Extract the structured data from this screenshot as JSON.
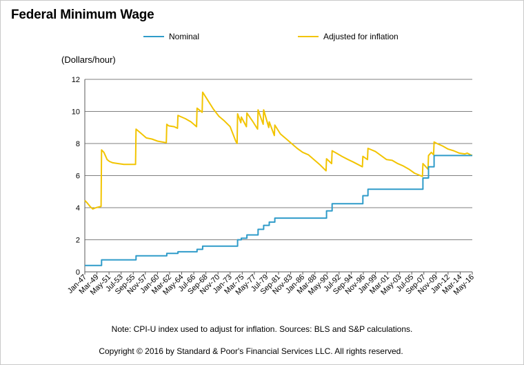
{
  "title": "Federal Minimum Wage",
  "note": "Note: CPI-U  index used to adjust for inflation. Sources: BLS and S&P  calculations.",
  "copyright": "Copyright © 2016 by Standard & Poor's Financial Services LLC. All rights reserved.",
  "colors": {
    "nominal": "#2e9bc9",
    "adjusted": "#f2c400",
    "grid": "#7f7f7f"
  },
  "chart_data": {
    "type": "line",
    "title": "Federal Minimum Wage",
    "ylabel": "(Dollars/hour)",
    "xlabel": "",
    "ylim": [
      0,
      12
    ],
    "yticks": [
      0,
      2,
      4,
      6,
      8,
      10,
      12
    ],
    "xlim": [
      "Jan-47",
      "May-16"
    ],
    "xtick_labels": [
      "Jan-47",
      "Mar-49",
      "May-51",
      "Jul-53",
      "Sep-55",
      "Nov-57",
      "Jan-60",
      "Mar-62",
      "May-64",
      "Jul-66",
      "Sep-68",
      "Nov-70",
      "Jan-73",
      "Mar-75",
      "May-77",
      "Jul-79",
      "Sep-81",
      "Nov-83",
      "Jan-86",
      "Mar-88",
      "May-90",
      "Jul-92",
      "Sep-94",
      "Nov-96",
      "Jan-99",
      "Mar-01",
      "May-03",
      "Jul-05",
      "Sep-07",
      "Nov-09",
      "Jan-12",
      "Mar-14",
      "May-16"
    ],
    "grid": true,
    "legend": "top",
    "series": [
      {
        "name": "Nominal",
        "color": "#2e9bc9",
        "points": [
          [
            "Jan-47",
            0.4
          ],
          [
            "Jan-50",
            0.4
          ],
          [
            "Jan-50",
            0.75
          ],
          [
            "Mar-56",
            0.75
          ],
          [
            "Mar-56",
            1.0
          ],
          [
            "Sep-61",
            1.0
          ],
          [
            "Sep-61",
            1.15
          ],
          [
            "Sep-63",
            1.15
          ],
          [
            "Sep-63",
            1.25
          ],
          [
            "Feb-67",
            1.25
          ],
          [
            "Feb-67",
            1.4
          ],
          [
            "Feb-68",
            1.4
          ],
          [
            "Feb-68",
            1.6
          ],
          [
            "May-74",
            1.6
          ],
          [
            "May-74",
            2.0
          ],
          [
            "Jan-75",
            2.0
          ],
          [
            "Jan-75",
            2.1
          ],
          [
            "Jan-76",
            2.1
          ],
          [
            "Jan-76",
            2.3
          ],
          [
            "Jan-78",
            2.3
          ],
          [
            "Jan-78",
            2.65
          ],
          [
            "Jan-79",
            2.65
          ],
          [
            "Jan-79",
            2.9
          ],
          [
            "Jan-80",
            2.9
          ],
          [
            "Jan-80",
            3.1
          ],
          [
            "Jan-81",
            3.1
          ],
          [
            "Jan-81",
            3.35
          ],
          [
            "Apr-90",
            3.35
          ],
          [
            "Apr-90",
            3.8
          ],
          [
            "Apr-91",
            3.8
          ],
          [
            "Apr-91",
            4.25
          ],
          [
            "Oct-96",
            4.25
          ],
          [
            "Oct-96",
            4.75
          ],
          [
            "Sep-97",
            4.75
          ],
          [
            "Sep-97",
            5.15
          ],
          [
            "Jul-07",
            5.15
          ],
          [
            "Jul-07",
            5.85
          ],
          [
            "Jul-08",
            5.85
          ],
          [
            "Jul-08",
            6.55
          ],
          [
            "Jul-09",
            6.55
          ],
          [
            "Jul-09",
            7.25
          ],
          [
            "May-16",
            7.25
          ]
        ]
      },
      {
        "name": "Adjusted for inflation",
        "color": "#f2c400",
        "points": [
          [
            "Jan-47",
            4.45
          ],
          [
            "Jun-47",
            4.3
          ],
          [
            "Jan-48",
            4.05
          ],
          [
            "Jun-48",
            3.92
          ],
          [
            "Jan-49",
            4.0
          ],
          [
            "Dec-49",
            4.08
          ],
          [
            "Jan-50",
            7.6
          ],
          [
            "Jun-50",
            7.45
          ],
          [
            "Jan-51",
            7.0
          ],
          [
            "Jun-51",
            6.88
          ],
          [
            "Jan-52",
            6.8
          ],
          [
            "Jan-53",
            6.75
          ],
          [
            "Jan-54",
            6.7
          ],
          [
            "Feb-56",
            6.7
          ],
          [
            "Mar-56",
            8.9
          ],
          [
            "Jan-57",
            8.65
          ],
          [
            "Jan-58",
            8.35
          ],
          [
            "Jan-59",
            8.28
          ],
          [
            "Jan-60",
            8.15
          ],
          [
            "Aug-61",
            8.05
          ],
          [
            "Sep-61",
            9.2
          ],
          [
            "Jan-62",
            9.1
          ],
          [
            "Jan-63",
            9.05
          ],
          [
            "Aug-63",
            8.95
          ],
          [
            "Sep-63",
            9.75
          ],
          [
            "Jan-64",
            9.7
          ],
          [
            "Jan-65",
            9.55
          ],
          [
            "Jan-66",
            9.35
          ],
          [
            "Jan-67",
            9.05
          ],
          [
            "Feb-67",
            10.2
          ],
          [
            "Jan-68",
            9.95
          ],
          [
            "Feb-68",
            11.2
          ],
          [
            "Jan-69",
            10.7
          ],
          [
            "Jan-70",
            10.15
          ],
          [
            "Jan-71",
            9.7
          ],
          [
            "Jan-72",
            9.4
          ],
          [
            "Jan-73",
            9.05
          ],
          [
            "Jan-74",
            8.15
          ],
          [
            "Apr-74",
            8.0
          ],
          [
            "May-74",
            9.85
          ],
          [
            "Dec-74",
            9.3
          ],
          [
            "Jan-75",
            9.65
          ],
          [
            "Dec-75",
            9.05
          ],
          [
            "Jan-76",
            9.9
          ],
          [
            "Jan-77",
            9.4
          ],
          [
            "Dec-77",
            8.9
          ],
          [
            "Jan-78",
            10.1
          ],
          [
            "Dec-78",
            9.2
          ],
          [
            "Jan-79",
            10.1
          ],
          [
            "Dec-79",
            9.0
          ],
          [
            "Jan-80",
            9.35
          ],
          [
            "Dec-80",
            8.5
          ],
          [
            "Jan-81",
            9.15
          ],
          [
            "Jan-82",
            8.6
          ],
          [
            "Jan-83",
            8.3
          ],
          [
            "Jan-84",
            8.0
          ],
          [
            "Jan-85",
            7.7
          ],
          [
            "Jan-86",
            7.45
          ],
          [
            "Jan-87",
            7.3
          ],
          [
            "Jan-88",
            7.0
          ],
          [
            "Jan-89",
            6.7
          ],
          [
            "Mar-90",
            6.3
          ],
          [
            "Apr-90",
            7.05
          ],
          [
            "Mar-91",
            6.75
          ],
          [
            "Apr-91",
            7.55
          ],
          [
            "Jan-92",
            7.4
          ],
          [
            "Jan-93",
            7.2
          ],
          [
            "Jan-94",
            7.02
          ],
          [
            "Jan-95",
            6.85
          ],
          [
            "Sep-96",
            6.55
          ],
          [
            "Oct-96",
            7.2
          ],
          [
            "Aug-97",
            7.0
          ],
          [
            "Sep-97",
            7.7
          ],
          [
            "Jan-99",
            7.5
          ],
          [
            "Jan-00",
            7.25
          ],
          [
            "Jan-01",
            7.0
          ],
          [
            "Jan-02",
            6.95
          ],
          [
            "Jan-03",
            6.75
          ],
          [
            "Jan-04",
            6.6
          ],
          [
            "Jan-05",
            6.4
          ],
          [
            "Jan-06",
            6.15
          ],
          [
            "Jun-07",
            5.95
          ],
          [
            "Jul-07",
            6.75
          ],
          [
            "Jun-08",
            6.4
          ],
          [
            "Jul-08",
            7.25
          ],
          [
            "Jan-09",
            7.45
          ],
          [
            "Jun-09",
            7.3
          ],
          [
            "Jul-09",
            8.1
          ],
          [
            "Jan-10",
            8.0
          ],
          [
            "Jan-11",
            7.85
          ],
          [
            "Jan-12",
            7.65
          ],
          [
            "Jan-13",
            7.55
          ],
          [
            "Jan-14",
            7.4
          ],
          [
            "Jan-15",
            7.35
          ],
          [
            "Jun-15",
            7.4
          ],
          [
            "Jan-16",
            7.3
          ],
          [
            "May-16",
            7.25
          ]
        ]
      }
    ]
  }
}
